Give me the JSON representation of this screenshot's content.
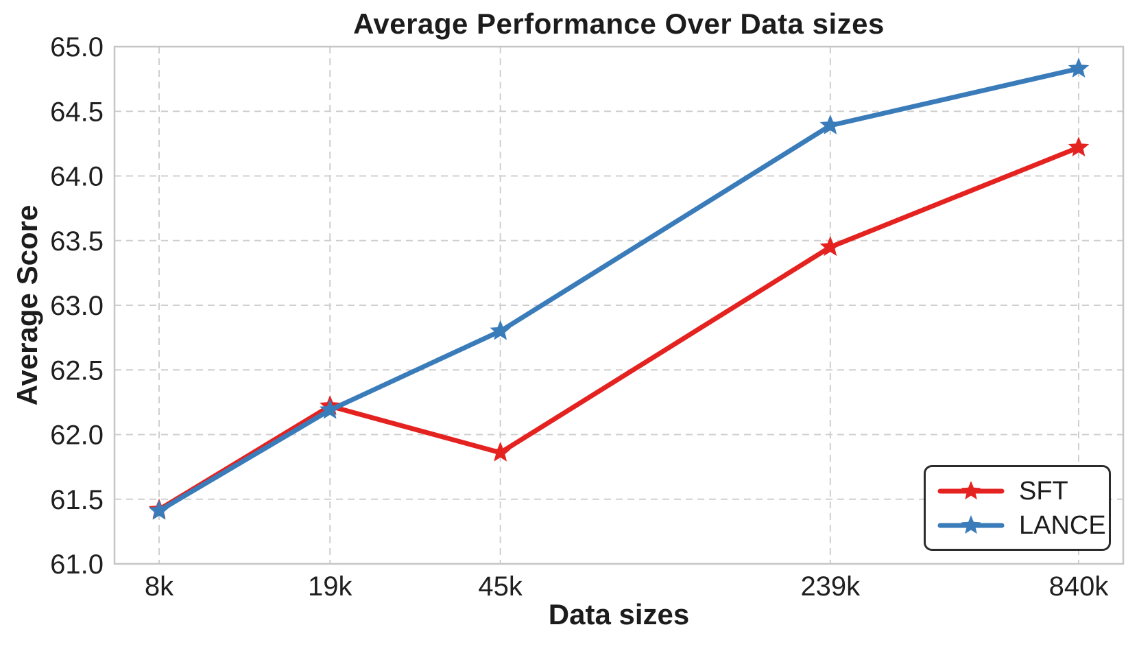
{
  "figure": {
    "title": "Average Performance Over Data sizes",
    "xlabel": "Data sizes",
    "ylabel": "Average Score"
  },
  "chart_data": {
    "type": "line",
    "title": "Average Performance Over Data sizes",
    "xlabel": "Data sizes",
    "ylabel": "Average Score",
    "x_scale": "log",
    "categories": [
      "8k",
      "19k",
      "45k",
      "239k",
      "840k"
    ],
    "x_values": [
      8000,
      19000,
      45000,
      239000,
      840000
    ],
    "series": [
      {
        "name": "SFT",
        "color": "#e42320",
        "marker": "star",
        "values": [
          61.42,
          62.22,
          61.86,
          63.45,
          64.22
        ]
      },
      {
        "name": "LANCE",
        "color": "#3a7cba",
        "marker": "star",
        "values": [
          61.41,
          62.19,
          62.8,
          64.39,
          64.83
        ]
      }
    ],
    "ylim": [
      61.0,
      65.0
    ],
    "yticks": [
      61.0,
      61.5,
      62.0,
      62.5,
      63.0,
      63.5,
      64.0,
      64.5,
      65.0
    ],
    "ytick_labels": [
      "61.0",
      "61.5",
      "62.0",
      "62.5",
      "63.0",
      "63.5",
      "64.0",
      "64.5",
      "65.0"
    ],
    "grid": true,
    "grid_style": "dashed",
    "legend_position": "lower right",
    "grid_color": "#cfcfcf",
    "spine_color": "#c6c6c6",
    "text_color": "#1f1f1f"
  }
}
